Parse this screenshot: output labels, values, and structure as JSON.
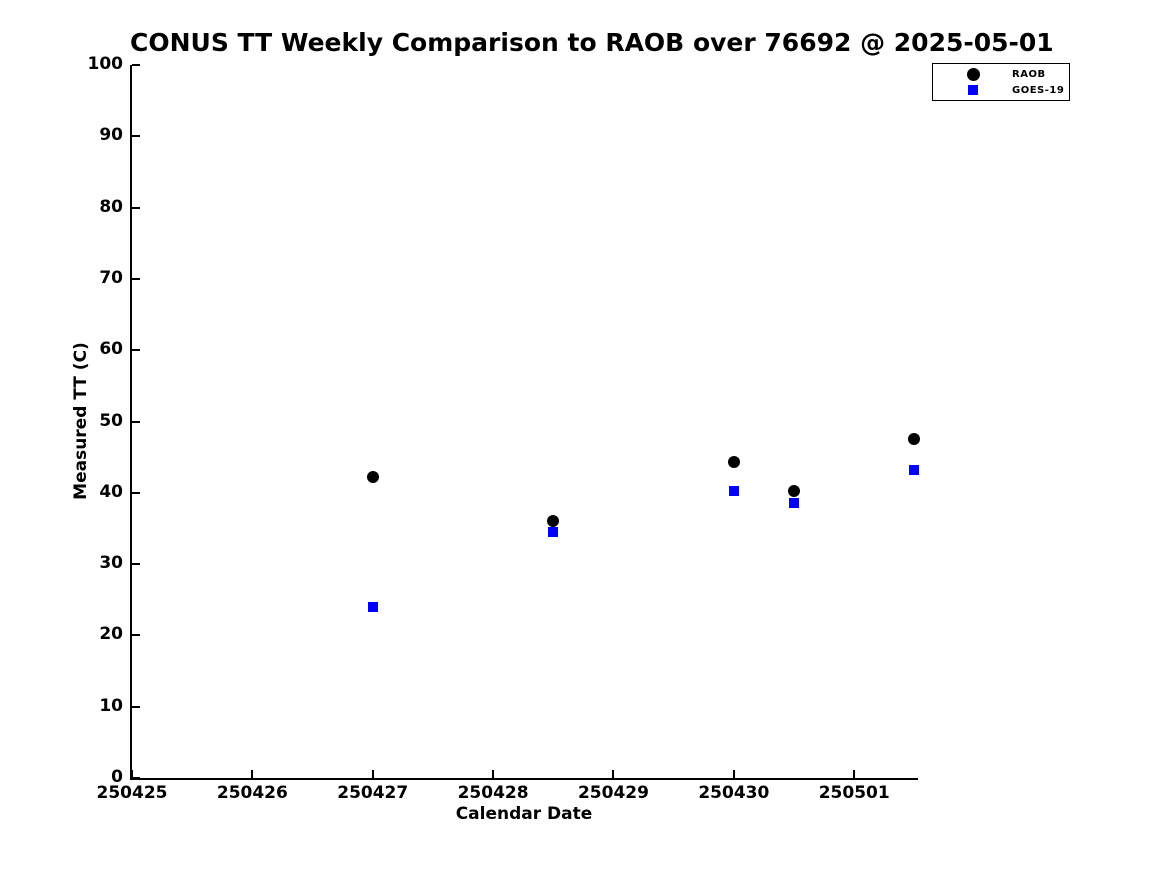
{
  "figure": {
    "background_color": "#ffffff",
    "text_color": "#000000",
    "axis_color": "#000000"
  },
  "chart_data": {
    "type": "scatter",
    "title": "CONUS TT Weekly Comparison to RAOB over 76692 @ 2025-05-01",
    "xlabel": "Calendar Date",
    "ylabel": "Measured TT (C)",
    "grid": false,
    "ylim": [
      0,
      100
    ],
    "y_ticks": [
      0,
      10,
      20,
      30,
      40,
      50,
      60,
      70,
      80,
      90,
      100
    ],
    "xlim_days": [
      0,
      6.53
    ],
    "x_ticks": [
      {
        "label": "250425",
        "day": 0
      },
      {
        "label": "250426",
        "day": 1
      },
      {
        "label": "250427",
        "day": 2
      },
      {
        "label": "250428",
        "day": 3
      },
      {
        "label": "250429",
        "day": 4
      },
      {
        "label": "250430",
        "day": 5
      },
      {
        "label": "250501",
        "day": 6
      }
    ],
    "legend_position": "top-right",
    "series": [
      {
        "name": "RAOB",
        "marker": "circle",
        "color": "#000000",
        "points": [
          {
            "x_days": 2.0,
            "y": 42.2
          },
          {
            "x_days": 3.5,
            "y": 36.1
          },
          {
            "x_days": 5.0,
            "y": 44.3
          },
          {
            "x_days": 5.5,
            "y": 40.2
          },
          {
            "x_days": 6.5,
            "y": 47.6
          }
        ]
      },
      {
        "name": "GOES-19",
        "marker": "square",
        "color": "#0000ff",
        "points": [
          {
            "x_days": 2.0,
            "y": 24.0
          },
          {
            "x_days": 3.5,
            "y": 34.5
          },
          {
            "x_days": 5.0,
            "y": 40.2
          },
          {
            "x_days": 5.5,
            "y": 38.6
          },
          {
            "x_days": 6.5,
            "y": 43.2
          }
        ]
      }
    ]
  },
  "legend": {
    "entries": [
      {
        "label": "RAOB",
        "marker": "circle",
        "color": "#000000"
      },
      {
        "label": "GOES-19",
        "marker": "square",
        "color": "#0000ff"
      }
    ]
  }
}
